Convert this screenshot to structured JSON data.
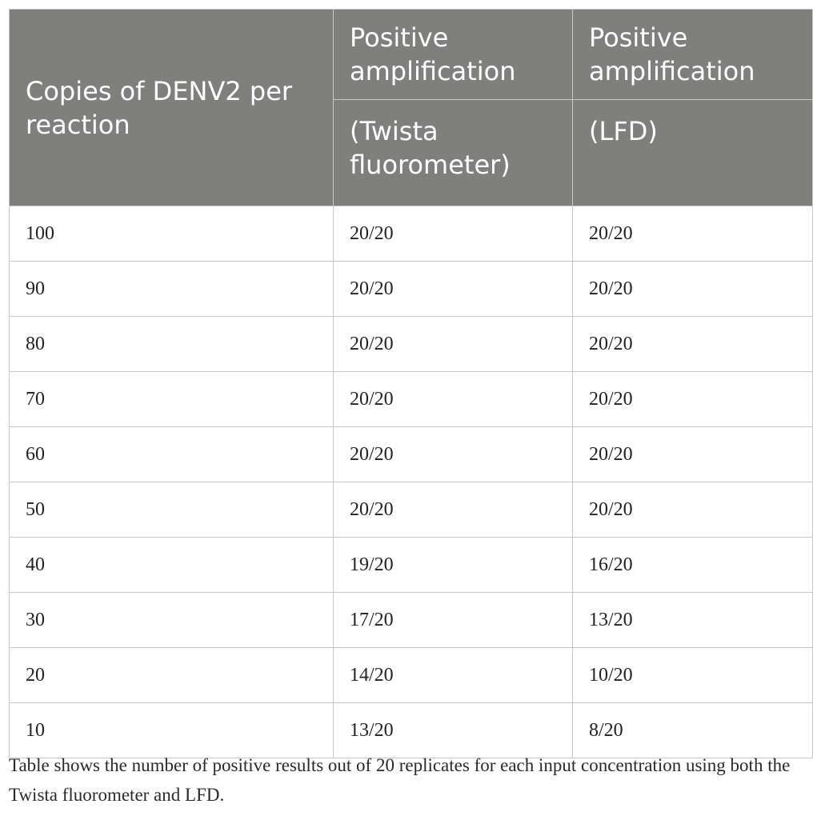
{
  "table": {
    "header": {
      "col1": "Copies of DENV2 per reaction",
      "col2_top": "Positive amplification",
      "col3_top": "Positive amplification",
      "col2_sub": "(Twista fluorometer)",
      "col3_sub": "(LFD)"
    },
    "rows": [
      [
        "100",
        "20/20",
        "20/20"
      ],
      [
        "90",
        "20/20",
        "20/20"
      ],
      [
        "80",
        "20/20",
        "20/20"
      ],
      [
        "70",
        "20/20",
        "20/20"
      ],
      [
        "60",
        "20/20",
        "20/20"
      ],
      [
        "50",
        "20/20",
        "20/20"
      ],
      [
        "40",
        "19/20",
        "16/20"
      ],
      [
        "30",
        "17/20",
        "13/20"
      ],
      [
        "20",
        "14/20",
        "10/20"
      ],
      [
        "10",
        "13/20",
        "8/20"
      ]
    ]
  },
  "caption": "Table shows the number of positive results out of 20 replicates for each input concentration using both the Twista fluorometer and LFD."
}
